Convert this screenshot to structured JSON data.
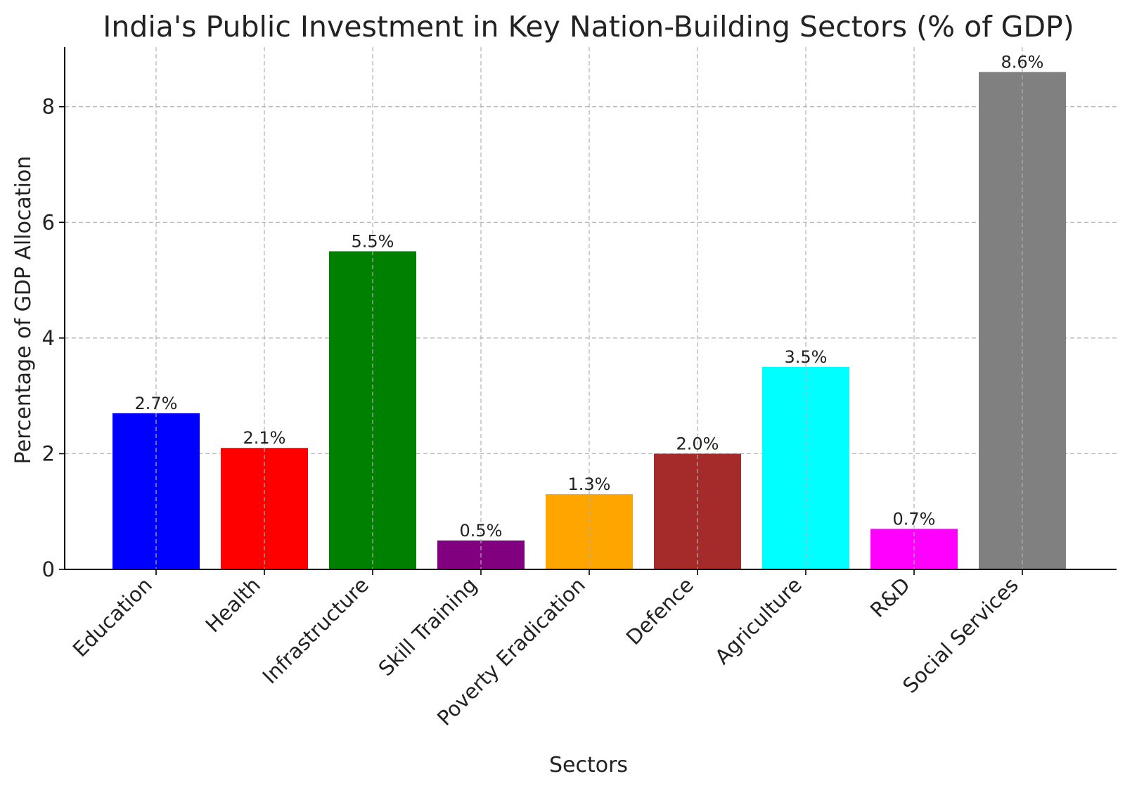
{
  "chart_data": {
    "type": "bar",
    "title": "India's Public Investment in Key Nation-Building Sectors (% of GDP)",
    "xlabel": "Sectors",
    "ylabel": "Percentage of GDP Allocation",
    "categories": [
      "Education",
      "Health",
      "Infrastructure",
      "Skill Training",
      "Poverty Eradication",
      "Defence",
      "Agriculture",
      "R&D",
      "Social Services"
    ],
    "values": [
      2.7,
      2.1,
      5.5,
      0.5,
      1.3,
      2.0,
      3.5,
      0.7,
      8.6
    ],
    "value_labels": [
      "2.7%",
      "2.1%",
      "5.5%",
      "0.5%",
      "1.3%",
      "2.0%",
      "3.5%",
      "0.7%",
      "8.6%"
    ],
    "bar_colors": [
      "#0000ff",
      "#ff0000",
      "#008000",
      "#800080",
      "#ffa500",
      "#a52a2a",
      "#00ffff",
      "#ff00ff",
      "#808080"
    ],
    "ylim": [
      0,
      9.03
    ],
    "yticks": [
      0,
      2,
      4,
      6,
      8
    ],
    "grid": true,
    "legend": "none"
  }
}
